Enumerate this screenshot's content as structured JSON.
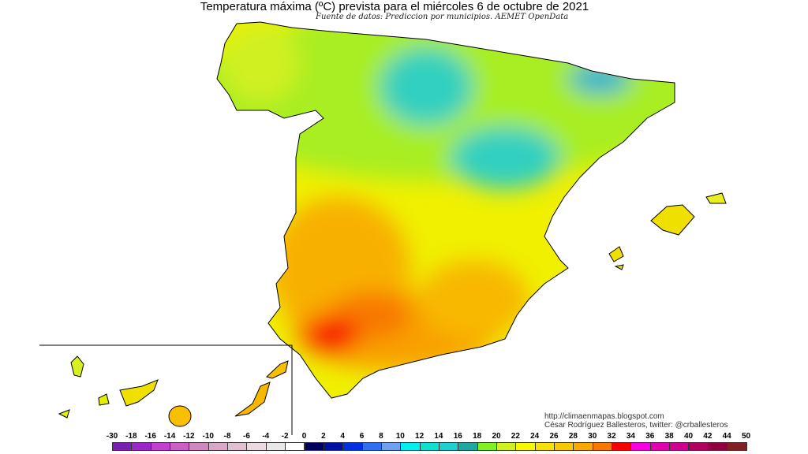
{
  "title": "Temperatura máxima (ºC) prevista para el miércoles 6 de octubre de 2021",
  "subtitle": "Fuente de datos: Prediccion por municipios. AEMET OpenData",
  "credits": {
    "url": "http://climaenmapas.blogspot.com",
    "author": "César Rodríguez Ballesteros, twitter: @crballesteros"
  },
  "legend": {
    "labels": [
      "-30",
      "-18",
      "-16",
      "-14",
      "-12",
      "-10",
      "-8",
      "-6",
      "-4",
      "-2",
      "0",
      "2",
      "4",
      "6",
      "8",
      "10",
      "12",
      "14",
      "16",
      "18",
      "20",
      "22",
      "24",
      "26",
      "28",
      "30",
      "32",
      "34",
      "36",
      "38",
      "40",
      "42",
      "44",
      "50"
    ],
    "colors": [
      "#7b1fb0",
      "#9a28c4",
      "#c040d0",
      "#cc5ec8",
      "#d088c0",
      "#d8a8c8",
      "#e0c0d0",
      "#ecd8e0",
      "#e8e8e8",
      "#ffffff",
      "#000060",
      "#0010a0",
      "#0030e0",
      "#3070f0",
      "#70a0f0",
      "#00f0f0",
      "#10e0d0",
      "#20d0d0",
      "#20a8a0",
      "#80f020",
      "#d0f020",
      "#f8f800",
      "#f8e000",
      "#f8c800",
      "#f8a800",
      "#f87800",
      "#f80000",
      "#f800e0",
      "#e000b0",
      "#d00090",
      "#b00060",
      "#900040",
      "#802020"
    ]
  },
  "map_colors": {
    "north": "#a8ee20",
    "cool": "#30d0c0",
    "center": "#f0f000",
    "south": "#f8b000",
    "hot": "#f87800",
    "max": "#f80000"
  }
}
